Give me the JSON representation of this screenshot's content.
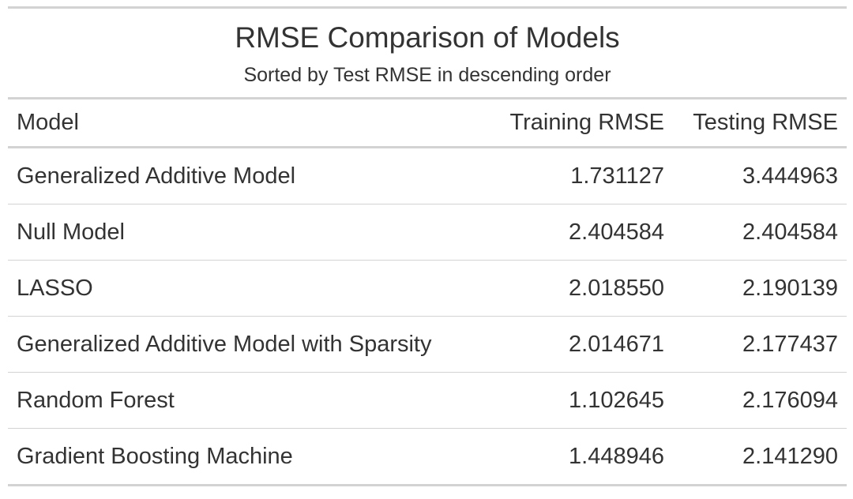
{
  "chart_data": {
    "type": "table",
    "title": "RMSE Comparison of Models",
    "subtitle": "Sorted by Test RMSE in descending order",
    "columns": [
      "Model",
      "Training RMSE",
      "Testing RMSE"
    ],
    "rows": [
      {
        "model": "Generalized Additive Model",
        "training_rmse": "1.731127",
        "testing_rmse": "3.444963"
      },
      {
        "model": "Null Model",
        "training_rmse": "2.404584",
        "testing_rmse": "2.404584"
      },
      {
        "model": "LASSO",
        "training_rmse": "2.018550",
        "testing_rmse": "2.190139"
      },
      {
        "model": "Generalized Additive Model with Sparsity",
        "training_rmse": "2.014671",
        "testing_rmse": "2.177437"
      },
      {
        "model": "Random Forest",
        "training_rmse": "1.102645",
        "testing_rmse": "2.176094"
      },
      {
        "model": "Gradient Boosting Machine",
        "training_rmse": "1.448946",
        "testing_rmse": "2.141290"
      }
    ]
  }
}
